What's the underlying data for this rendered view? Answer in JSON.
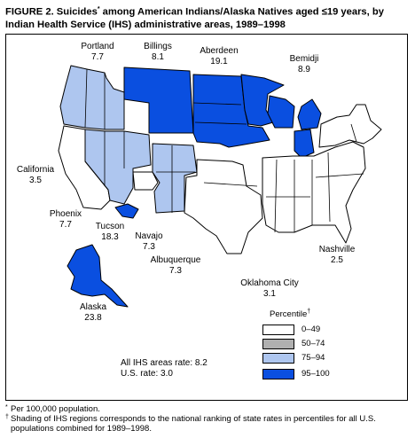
{
  "title": {
    "part1": "FIGURE 2. Suicides",
    "star": "*",
    "part2": " among American Indians/Alaska Natives aged ≤19 years, by Indian Health Service (IHS) administrative areas, 1989–1998"
  },
  "areas": [
    {
      "name": "Portland",
      "rate": "7.7"
    },
    {
      "name": "Billings",
      "rate": "8.1"
    },
    {
      "name": "Aberdeen",
      "rate": "19.1"
    },
    {
      "name": "Bemidji",
      "rate": "8.9"
    },
    {
      "name": "California",
      "rate": "3.5"
    },
    {
      "name": "Phoenix",
      "rate": "7.7"
    },
    {
      "name": "Tucson",
      "rate": "18.3"
    },
    {
      "name": "Navajo",
      "rate": "7.3"
    },
    {
      "name": "Albuquerque",
      "rate": "7.3"
    },
    {
      "name": "Nashville",
      "rate": "2.5"
    },
    {
      "name": "Oklahoma City",
      "rate": "3.1"
    },
    {
      "name": "Alaska",
      "rate": "23.8"
    }
  ],
  "legend": {
    "title": "Percentile",
    "title_mark": "†",
    "items": [
      {
        "label": "0–49",
        "color": "#ffffff"
      },
      {
        "label": "50–74",
        "color": "#b0b0b0"
      },
      {
        "label": "75–94",
        "color": "#aec6ef"
      },
      {
        "label": "95–100",
        "color": "#0a4fe0"
      }
    ]
  },
  "rates": {
    "all_ihs": "All IHS areas rate: 8.2",
    "us": "U.S. rate: 3.0"
  },
  "footnotes": [
    {
      "mark": "*",
      "text": "Per 100,000 population."
    },
    {
      "mark": "†",
      "text": "Shading of IHS regions corresponds to the national ranking of state rates in percentiles for all U.S. populations combined for 1989–1998."
    }
  ]
}
